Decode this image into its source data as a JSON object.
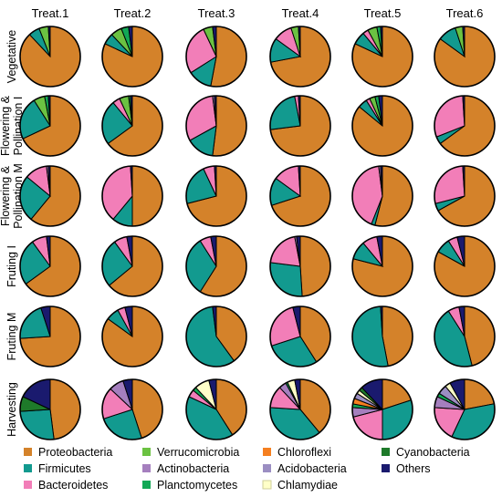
{
  "chart_data": {
    "type": "pie",
    "columns": [
      "Treat.1",
      "Treat.2",
      "Treat.3",
      "Treat.4",
      "Treat.5",
      "Treat.6"
    ],
    "rows": [
      "Vegetative",
      "Flowering & Pollination I",
      "Flowering & Pollination M",
      "Fruting I",
      "Fruting M",
      "Harvesting"
    ],
    "row_label_lines": [
      [
        "Vegetative"
      ],
      [
        "Flowering &",
        "Pollination I"
      ],
      [
        "Flowering &",
        "Pollination M"
      ],
      [
        "Fruting I"
      ],
      [
        "Fruting M"
      ],
      [
        "Harvesting"
      ]
    ],
    "categories": [
      "Proteobacteria",
      "Firmicutes",
      "Bacteroidetes",
      "Verrucomicrobia",
      "Actinobacteria",
      "Planctomycetes",
      "Chloroflexi",
      "Acidobacteria",
      "Chlamydiae",
      "Cyanobacteria",
      "Others"
    ],
    "colors": {
      "Proteobacteria": "#D4822A",
      "Firmicutes": "#129A8F",
      "Bacteroidetes": "#F27EB8",
      "Verrucomicrobia": "#6BC242",
      "Actinobacteria": "#A57FBE",
      "Planctomycetes": "#12A856",
      "Chloroflexi": "#F57F20",
      "Acidobacteria": "#9B8EC2",
      "Chlamydiae": "#FFFFC8",
      "Cyanobacteria": "#1E7A2A",
      "Others": "#1A1A6E"
    },
    "values": [
      [
        [
          88,
          6,
          0,
          5,
          0,
          0,
          0,
          0,
          0,
          0,
          1
        ],
        [
          82,
          6,
          0,
          6,
          0,
          4,
          0,
          0,
          0,
          0,
          2
        ],
        [
          53,
          13,
          27,
          5,
          0,
          0,
          0,
          0,
          0,
          0,
          2
        ],
        [
          72,
          13,
          10,
          4,
          0,
          0,
          0,
          0,
          0,
          0,
          1
        ],
        [
          82,
          7,
          3,
          5,
          0,
          2,
          0,
          0,
          0,
          0,
          1
        ],
        [
          85,
          10,
          0,
          4,
          0,
          0,
          0,
          0,
          0,
          0,
          1
        ]
      ],
      [
        [
          68,
          23,
          0,
          6,
          0,
          2,
          0,
          0,
          0,
          0,
          1
        ],
        [
          65,
          24,
          4,
          5,
          0,
          1,
          0,
          0,
          0,
          0,
          1
        ],
        [
          52,
          15,
          31,
          0,
          1,
          0,
          0,
          0,
          0,
          0,
          1
        ],
        [
          73,
          24,
          2,
          0,
          0,
          0,
          0,
          0,
          0,
          0,
          1
        ],
        [
          86,
          5,
          2,
          3,
          0,
          2,
          0,
          0,
          0,
          0,
          2
        ],
        [
          65,
          4,
          30,
          0,
          0,
          0,
          0,
          0,
          0,
          0,
          1
        ]
      ],
      [
        [
          61,
          25,
          12,
          0,
          1,
          0,
          0,
          0,
          0,
          0,
          1
        ],
        [
          50,
          11,
          38,
          0,
          0,
          0,
          0,
          0,
          0,
          0,
          1
        ],
        [
          71,
          22,
          6,
          0,
          0,
          0,
          0,
          0,
          0,
          0,
          1
        ],
        [
          70,
          15,
          14,
          0,
          0,
          0,
          0,
          0,
          0,
          0,
          1
        ],
        [
          54,
          2,
          42,
          0,
          1,
          0,
          0,
          0,
          0,
          0,
          1
        ],
        [
          67,
          4,
          28,
          0,
          0,
          0,
          0,
          0,
          0,
          0,
          1
        ]
      ],
      [
        [
          65,
          25,
          8,
          0,
          0,
          0,
          0,
          0,
          0,
          0,
          2
        ],
        [
          64,
          26,
          7,
          0,
          0,
          0,
          0,
          0,
          0,
          0,
          3
        ],
        [
          59,
          32,
          6,
          0,
          0,
          0,
          0,
          0,
          0,
          0,
          3
        ],
        [
          49,
          28,
          20,
          0,
          1,
          0,
          0,
          0,
          0,
          0,
          2
        ],
        [
          79,
          10,
          8,
          0,
          0,
          0,
          0,
          0,
          0,
          0,
          3
        ],
        [
          83,
          8,
          5,
          0,
          0,
          0,
          0,
          0,
          0,
          0,
          4
        ]
      ],
      [
        [
          74,
          21,
          0,
          0,
          0,
          0,
          0,
          0,
          0,
          0,
          5
        ],
        [
          85,
          7,
          4,
          0,
          0,
          0,
          0,
          0,
          0,
          0,
          4
        ],
        [
          40,
          58,
          0,
          0,
          0,
          0,
          0,
          0,
          0,
          0,
          2
        ],
        [
          41,
          29,
          26,
          0,
          0,
          0,
          0,
          0,
          0,
          0,
          4
        ],
        [
          47,
          52,
          0,
          0,
          0,
          0,
          0,
          0,
          0,
          0,
          1
        ],
        [
          46,
          45,
          6,
          0,
          0,
          0,
          0,
          0,
          0,
          0,
          3
        ]
      ],
      [
        [
          48,
          26,
          0,
          0,
          0,
          0,
          0,
          0,
          0,
          8,
          18
        ],
        [
          45,
          25,
          17,
          0,
          8,
          0,
          0,
          0,
          0,
          0,
          5
        ],
        [
          41,
          41,
          4,
          0,
          0,
          2,
          0,
          0,
          8,
          0,
          4
        ],
        [
          39,
          37,
          12,
          0,
          4,
          1,
          0,
          0,
          4,
          0,
          3
        ],
        [
          20,
          30,
          21,
          0,
          5,
          2,
          3,
          3,
          2,
          2,
          12
        ],
        [
          22,
          35,
          19,
          0,
          6,
          2,
          0,
          5,
          3,
          0,
          8
        ]
      ]
    ]
  }
}
